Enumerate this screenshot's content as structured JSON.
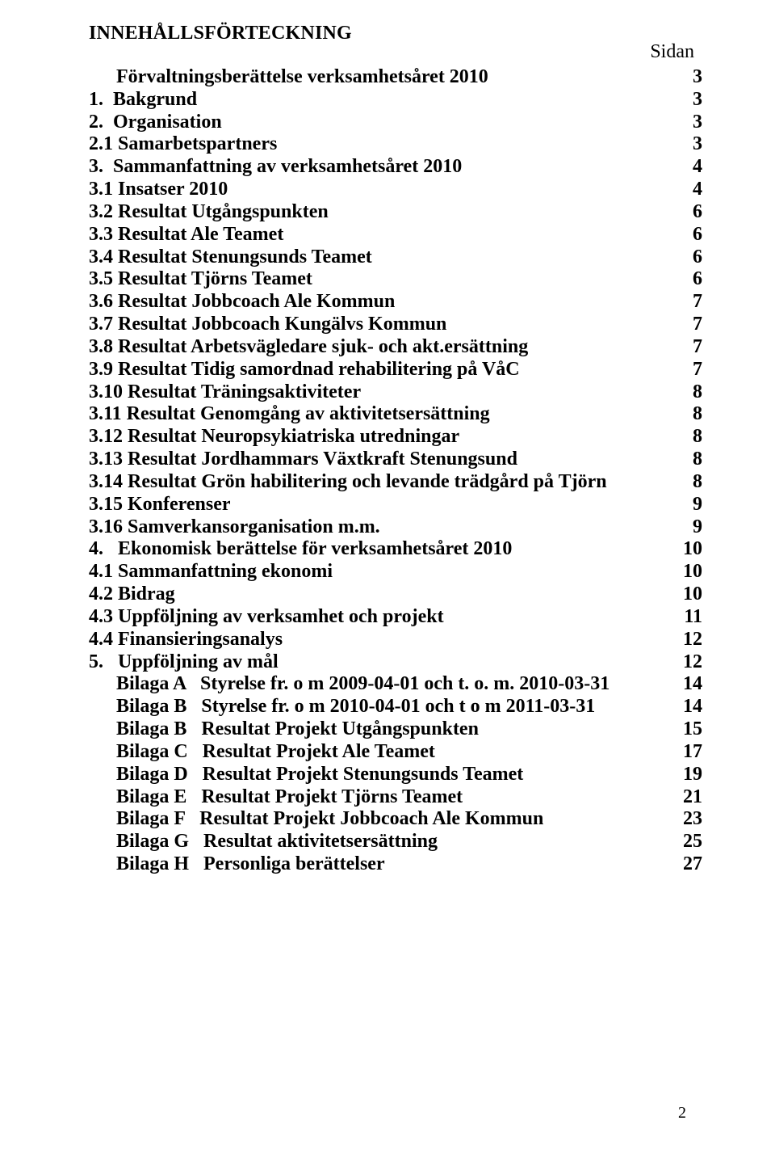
{
  "title": "INNEHÅLLSFÖRTECKNING",
  "page_label": "Sidan",
  "footer_page": "2",
  "entries": [
    {
      "label": "Förvaltningsberättelse verksamhetsåret 2010",
      "page": "3",
      "indent": 1
    },
    {
      "label": "1.  Bakgrund",
      "page": "3",
      "indent": 0
    },
    {
      "label": "2.  Organisation",
      "page": "3",
      "indent": 0
    },
    {
      "label": "2.1 Samarbetspartners",
      "page": "3",
      "indent": 0
    },
    {
      "label": "3.  Sammanfattning av verksamhetsåret 2010",
      "page": "4",
      "indent": 0
    },
    {
      "label": "3.1 Insatser 2010",
      "page": "4",
      "indent": 0
    },
    {
      "label": "3.2 Resultat Utgångspunkten",
      "page": "6",
      "indent": 0
    },
    {
      "label": "3.3 Resultat Ale Teamet",
      "page": "6",
      "indent": 0
    },
    {
      "label": "3.4 Resultat Stenungsunds Teamet",
      "page": "6",
      "indent": 0
    },
    {
      "label": "3.5 Resultat Tjörns Teamet",
      "page": "6",
      "indent": 0
    },
    {
      "label": "3.6 Resultat Jobbcoach Ale Kommun",
      "page": "7",
      "indent": 0
    },
    {
      "label": "3.7 Resultat Jobbcoach Kungälvs Kommun",
      "page": "7",
      "indent": 0
    },
    {
      "label": "3.8 Resultat Arbetsvägledare sjuk- och akt.ersättning",
      "page": "7",
      "indent": 0
    },
    {
      "label": "3.9 Resultat Tidig samordnad rehabilitering på VåC",
      "page": "7",
      "indent": 0
    },
    {
      "label": "3.10 Resultat Träningsaktiviteter",
      "page": "8",
      "indent": 0
    },
    {
      "label": "3.11 Resultat Genomgång av aktivitetsersättning",
      "page": "8",
      "indent": 0
    },
    {
      "label": "3.12 Resultat Neuropsykiatriska utredningar",
      "page": "8",
      "indent": 0
    },
    {
      "label": "3.13 Resultat Jordhammars Växtkraft Stenungsund",
      "page": "8",
      "indent": 0
    },
    {
      "label": "3.14 Resultat Grön habilitering och levande trädgård på Tjörn",
      "page": "8",
      "indent": 0
    },
    {
      "label": "3.15 Konferenser",
      "page": "9",
      "indent": 0
    },
    {
      "label": "3.16 Samverkansorganisation m.m.",
      "page": "9",
      "indent": 0
    },
    {
      "label": "4.   Ekonomisk berättelse för verksamhetsåret 2010",
      "page": "10",
      "indent": 0
    },
    {
      "label": "4.1 Sammanfattning ekonomi",
      "page": "10",
      "indent": 0
    },
    {
      "label": "4.2 Bidrag",
      "page": "10",
      "indent": 0
    },
    {
      "label": "4.3 Uppföljning av verksamhet och projekt",
      "page": "11",
      "indent": 0
    },
    {
      "label": "4.4 Finansieringsanalys",
      "page": "12",
      "indent": 0
    },
    {
      "label": "5.   Uppföljning av mål",
      "page": "12",
      "indent": 0
    },
    {
      "label": "Bilaga A   Styrelse fr. o m 2009-04-01 och t. o. m. 2010-03-31",
      "page": "14",
      "indent": 1
    },
    {
      "label": "Bilaga B   Styrelse fr. o m 2010-04-01 och t o m 2011-03-31",
      "page": "14",
      "indent": 1
    },
    {
      "label": "Bilaga B   Resultat Projekt Utgångspunkten",
      "page": "15",
      "indent": 1
    },
    {
      "label": "Bilaga C   Resultat Projekt Ale Teamet",
      "page": "17",
      "indent": 1
    },
    {
      "label": "Bilaga D   Resultat Projekt Stenungsunds Teamet",
      "page": "19",
      "indent": 1
    },
    {
      "label": "Bilaga E   Resultat Projekt Tjörns Teamet",
      "page": "21",
      "indent": 1
    },
    {
      "label": "Bilaga F   Resultat Projekt Jobbcoach Ale Kommun",
      "page": "23",
      "indent": 1
    },
    {
      "label": "Bilaga G   Resultat aktivitetsersättning",
      "page": "25",
      "indent": 1
    },
    {
      "label": "Bilaga H   Personliga berättelser",
      "page": "27",
      "indent": 1
    }
  ]
}
